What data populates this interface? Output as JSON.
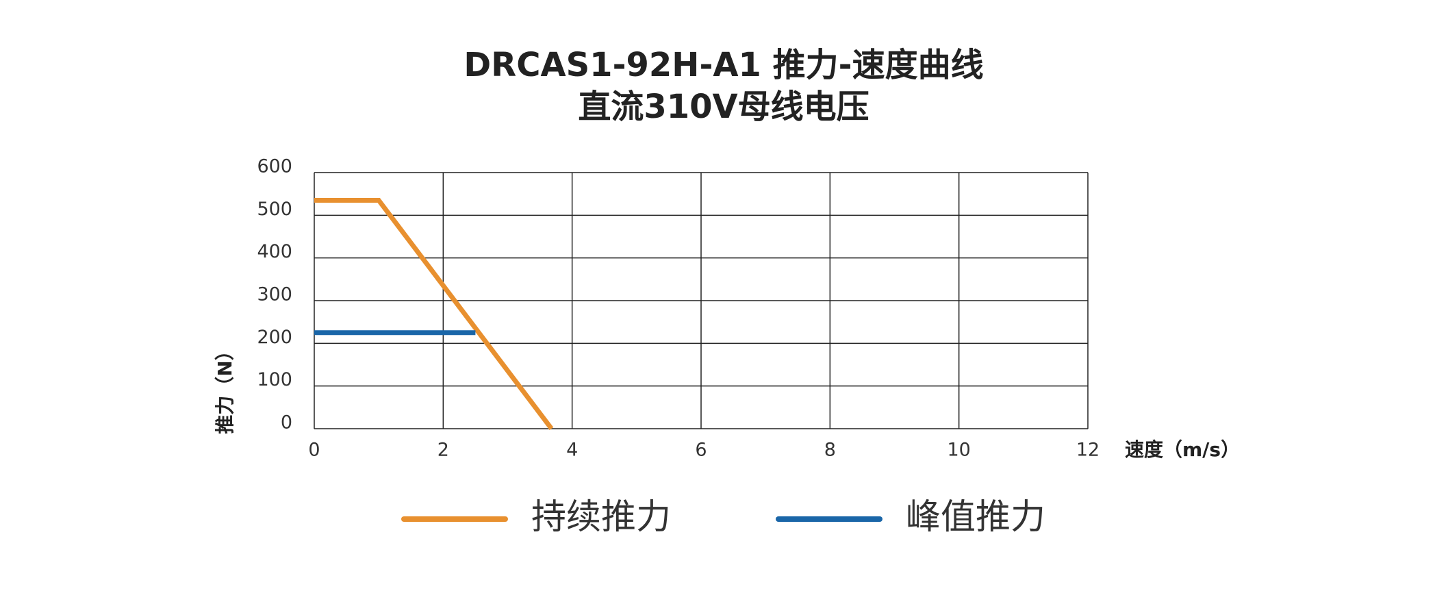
{
  "chart_data": {
    "type": "line",
    "title": "DRCAS1-92H-A1 推力-速度曲线",
    "subtitle": "直流310V母线电压",
    "xlabel": "速度（m/s）",
    "ylabel": "推力（N）",
    "xlim": [
      0,
      12
    ],
    "xticks": [
      0,
      2,
      4,
      6,
      8,
      10,
      12
    ],
    "ylim": [
      0,
      600
    ],
    "yticks": [
      0,
      100,
      200,
      300,
      400,
      500,
      600
    ],
    "grid": true,
    "series": [
      {
        "name": "持续推力",
        "color": "#e8902f",
        "x": [
          0,
          1,
          3.68
        ],
        "values": [
          535,
          535,
          0
        ]
      },
      {
        "name": "峰值推力",
        "color": "#1a66a8",
        "x": [
          0,
          2.5
        ],
        "values": [
          225,
          225
        ]
      }
    ]
  }
}
